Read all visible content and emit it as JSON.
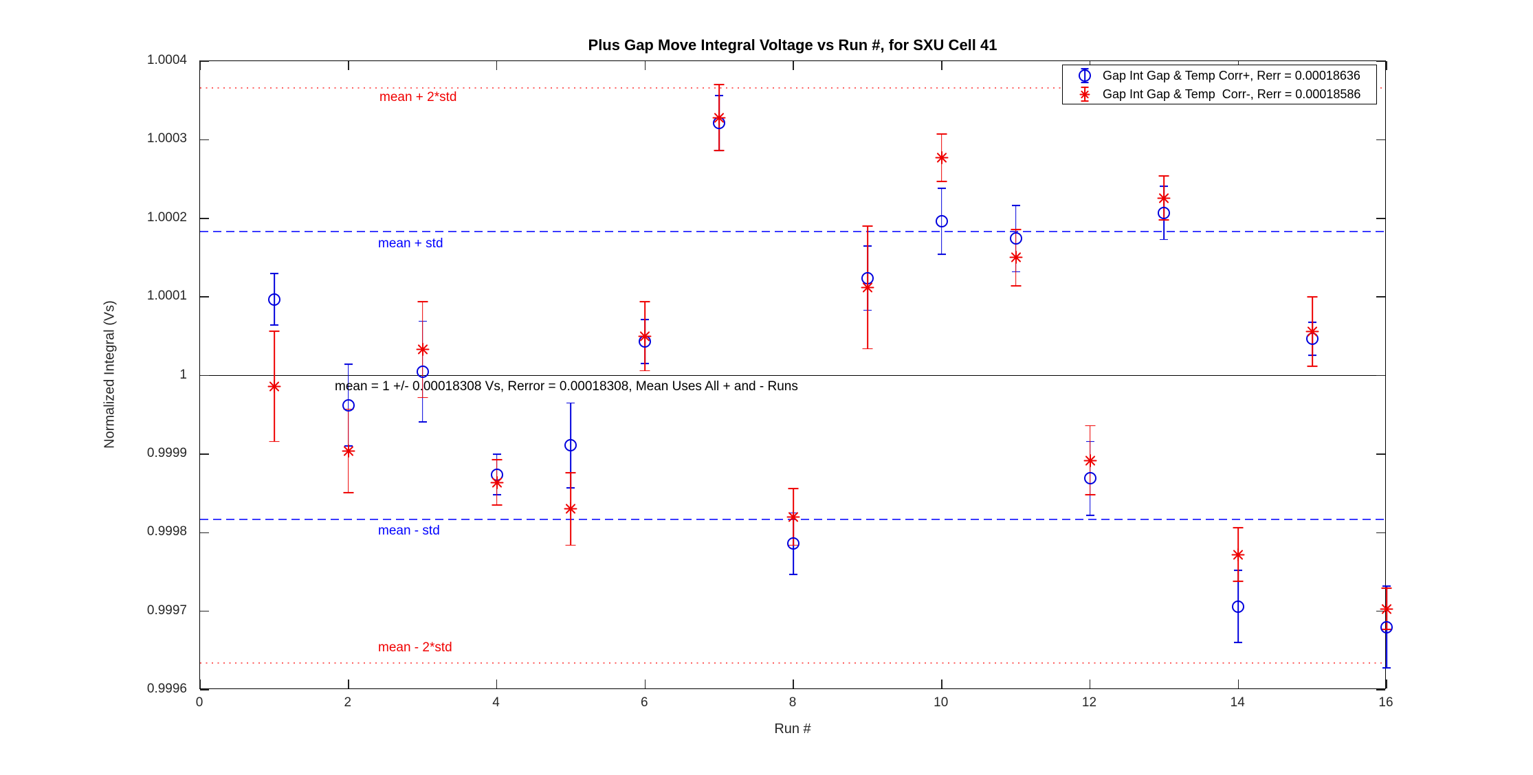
{
  "chart_data": {
    "type": "scatter",
    "title": "Plus Gap Move Integral Voltage vs Run #, for SXU Cell 41",
    "xlabel": "Run #",
    "ylabel": "Normalized Integral (Vs)",
    "xlim": [
      0,
      16
    ],
    "ylim": [
      0.9996,
      1.0004
    ],
    "xticks": [
      0,
      2,
      4,
      6,
      8,
      10,
      12,
      14,
      16
    ],
    "xtick_labels": [
      "0",
      "2",
      "4",
      "6",
      "8",
      "10",
      "12",
      "14",
      "16"
    ],
    "yticks": [
      0.9996,
      0.9997,
      0.9998,
      0.9999,
      1,
      1.0001,
      1.0002,
      1.0003,
      1.0004
    ],
    "ytick_labels": [
      "0.9996",
      "0.9997",
      "0.9998",
      "0.9999",
      "1",
      "1.0001",
      "1.0002",
      "1.0003",
      "1.0004"
    ],
    "grid": false,
    "legend_position": "northeast",
    "x": [
      1,
      2,
      3,
      4,
      5,
      6,
      7,
      8,
      9,
      10,
      11,
      12,
      13,
      14,
      15,
      16
    ],
    "series": [
      {
        "name": "Gap Int Gap & Temp Corr+, Rerr = 0.00018636",
        "marker": "circle",
        "color": "#0000dd",
        "values": [
          1.000097,
          0.999962,
          1.000005,
          0.999874,
          0.999911,
          1.000043,
          1.000321,
          0.999786,
          1.000124,
          1.000196,
          1.000174,
          0.999869,
          1.000207,
          0.999706,
          1.000047,
          0.99968
        ],
        "errors": [
          3.3e-05,
          5.2e-05,
          6.4e-05,
          2.6e-05,
          5.4e-05,
          2.8e-05,
          3.5e-05,
          3.9e-05,
          4.1e-05,
          4.2e-05,
          4.2e-05,
          4.7e-05,
          3.4e-05,
          4.6e-05,
          2.1e-05,
          5.2e-05
        ]
      },
      {
        "name": "Gap Int Gap & Temp  Corr-, Rerr = 0.00018586",
        "marker": "asterisk",
        "color": "#ee0000",
        "values": [
          0.999986,
          0.999904,
          1.000033,
          0.999864,
          0.99983,
          1.00005,
          1.000328,
          0.99982,
          1.000112,
          1.000277,
          1.00015,
          0.999892,
          1.000226,
          0.999772,
          1.000056,
          0.999703
        ],
        "errors": [
          7e-05,
          5.3e-05,
          6.1e-05,
          2.9e-05,
          4.6e-05,
          4.4e-05,
          4.2e-05,
          3.6e-05,
          7.8e-05,
          3e-05,
          3.6e-05,
          4.4e-05,
          2.8e-05,
          3.4e-05,
          4.4e-05,
          2.6e-05
        ]
      }
    ],
    "stats": {
      "mean": 1,
      "std": 0.00018308
    },
    "reference_lines": [
      {
        "label": "mean + 2*std",
        "value": 1.00036616,
        "style": "dotted",
        "color": "#ff0000"
      },
      {
        "label": "mean + std",
        "value": 1.00018308,
        "style": "dashed",
        "color": "#3333ff"
      },
      {
        "label": "mean = 1 +/- 0.00018308 Vs, Rerror = 0.00018308, Mean Uses All + and - Runs",
        "value": 1,
        "style": "solid",
        "color": "#000000"
      },
      {
        "label": "mean - std",
        "value": 0.99981692,
        "style": "dashed",
        "color": "#3333ff"
      },
      {
        "label": "mean - 2*std",
        "value": 0.99963384,
        "style": "dotted",
        "color": "#ff0000"
      }
    ]
  }
}
